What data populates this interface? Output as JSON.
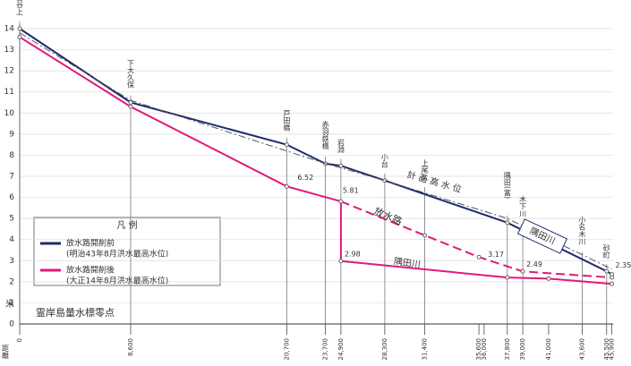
{
  "chart_data": {
    "type": "line",
    "y_label": "米",
    "x_label": "距離",
    "baseline_label": "霊岸島量水標零点",
    "legend_title": "凡 例",
    "xlim": [
      0,
      46000
    ],
    "ylim": [
      0,
      14
    ],
    "yticks": [
      0,
      1,
      2,
      3,
      4,
      5,
      6,
      7,
      8,
      9,
      10,
      11,
      12,
      13,
      14
    ],
    "xticks": [
      0,
      {
        "value": 8600,
        "label": "8,600"
      },
      {
        "value": 20700,
        "label": "20,700"
      },
      {
        "value": 23700,
        "label": "23,700"
      },
      {
        "value": 24900,
        "label": "24,900"
      },
      {
        "value": 28300,
        "label": "28,300"
      },
      {
        "value": 31400,
        "label": "31,400"
      },
      {
        "value": 35600,
        "label": "35,600"
      },
      {
        "value": 36000,
        "label": "36,000"
      },
      {
        "value": 37800,
        "label": "37,800"
      },
      {
        "value": 39000,
        "label": "39,000"
      },
      {
        "value": 41000,
        "label": "41,000"
      },
      {
        "value": 43600,
        "label": "43,600"
      },
      {
        "value": 45500,
        "label": "45,500"
      },
      {
        "value": 45900,
        "label": "45,900"
      }
    ],
    "grid": true,
    "stations": [
      {
        "x": 0,
        "label": "古谷上"
      },
      {
        "x": 8600,
        "label": "下大久保"
      },
      {
        "x": 20700,
        "label": "戸田橋"
      },
      {
        "x": 23700,
        "label": "赤羽鉄橋"
      },
      {
        "x": 24900,
        "label": "岩淵"
      },
      {
        "x": 28300,
        "label": "小台"
      },
      {
        "x": 31400,
        "label": "上尾久"
      },
      {
        "x": 37800,
        "label": "隅田(富)"
      },
      {
        "x": 39000,
        "label": "木下川"
      },
      {
        "x": 43600,
        "label": "小名木川"
      },
      {
        "x": 45500,
        "label": "砂町"
      }
    ],
    "series": [
      {
        "name": "放水路開削前",
        "note": "(明治43年8月洪水最高水位)",
        "color": "#1f2a6e",
        "label": "隅田川",
        "x": [
          0,
          8600,
          20700,
          23700,
          24900,
          28300,
          37800,
          45500,
          45900
        ],
        "values": [
          14,
          10.5,
          8.5,
          7.6,
          7.5,
          6.8,
          4.8,
          2.5,
          2.35
        ]
      },
      {
        "name": "計 画 高 水 位",
        "color": "#555555",
        "x": [
          0,
          8600,
          20700,
          23700,
          24900,
          28300,
          37800,
          45900
        ],
        "values": [
          13.8,
          10.6,
          8.2,
          7.6,
          7.4,
          6.8,
          5.0,
          2.6
        ]
      },
      {
        "name": "放水路開削後",
        "note": "(大正14年8月洪水最高水位)",
        "color": "#e0197a",
        "x": [
          0,
          8600,
          20700,
          24900
        ],
        "values": [
          13.6,
          10.3,
          6.52,
          5.81
        ],
        "branches": [
          {
            "name": "放水路",
            "dashed": true,
            "x": [
              24900,
              31400,
              35600,
              39000,
              45900
            ],
            "values": [
              5.81,
              4.2,
              3.17,
              2.49,
              2.2
            ]
          },
          {
            "name": "隅田川",
            "dashed": false,
            "x": [
              24900,
              24900,
              37800,
              41000,
              45900
            ],
            "values": [
              5.81,
              2.98,
              2.2,
              2.15,
              1.9
            ]
          }
        ]
      }
    ]
  }
}
